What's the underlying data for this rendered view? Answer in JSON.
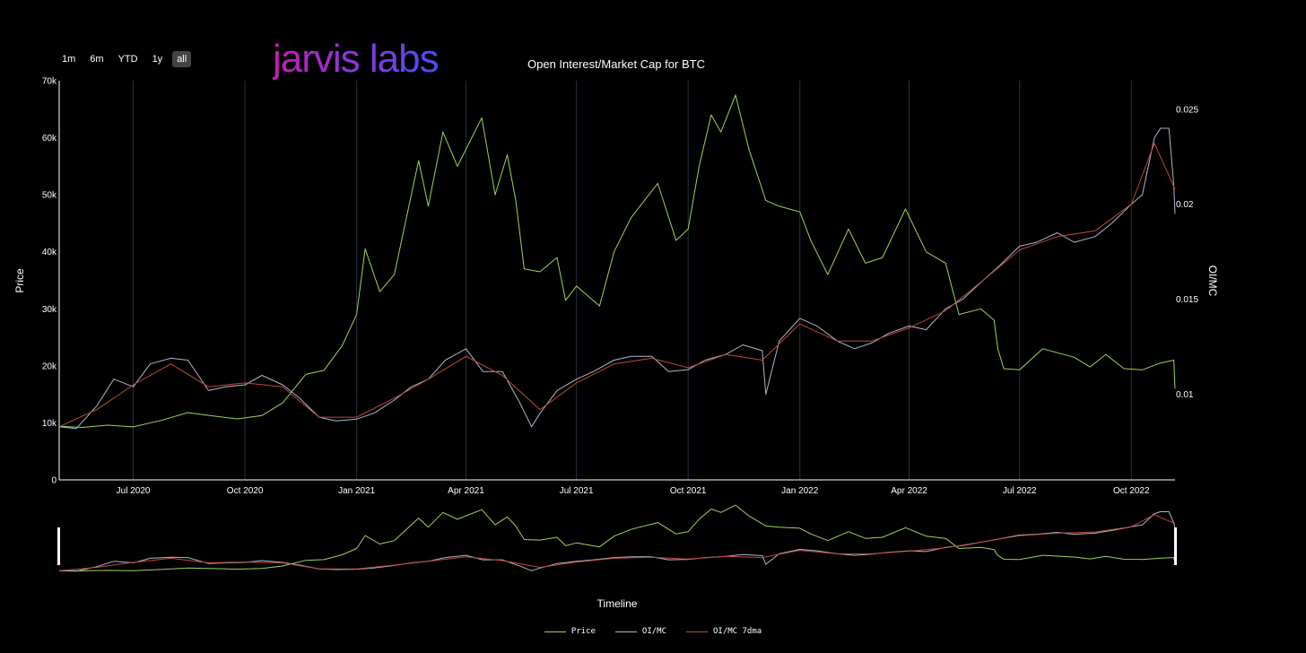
{
  "range_selector": {
    "buttons": [
      {
        "label": "1m",
        "active": false
      },
      {
        "label": "6m",
        "active": false
      },
      {
        "label": "YTD",
        "active": false
      },
      {
        "label": "1y",
        "active": false
      },
      {
        "label": "all",
        "active": true
      }
    ]
  },
  "brand": {
    "text": "jarvis labs"
  },
  "colors": {
    "background": "#000000",
    "price": "#9fd357",
    "oimc": "#a9b8cc",
    "oimc_7dma": "#c0483c",
    "grid": "#2a3040",
    "axis": "#ffffff"
  },
  "chart_data": {
    "type": "line",
    "title": "Open Interest/Market Cap for BTC",
    "xlabel": "Timeline",
    "ylabel": "Price",
    "y2label": "OI/MC",
    "x_range": [
      "2020-05-01",
      "2022-11-06"
    ],
    "ylim": [
      0,
      70000
    ],
    "y2lim": [
      0.0055,
      0.0265
    ],
    "x_ticks": [
      {
        "date": "2020-07-01",
        "label": "Jul 2020"
      },
      {
        "date": "2020-10-01",
        "label": "Oct 2020"
      },
      {
        "date": "2021-01-01",
        "label": "Jan 2021"
      },
      {
        "date": "2021-04-01",
        "label": "Apr 2021"
      },
      {
        "date": "2021-07-01",
        "label": "Jul 2021"
      },
      {
        "date": "2021-10-01",
        "label": "Oct 2021"
      },
      {
        "date": "2022-01-01",
        "label": "Jan 2022"
      },
      {
        "date": "2022-04-01",
        "label": "Apr 2022"
      },
      {
        "date": "2022-07-01",
        "label": "Jul 2022"
      },
      {
        "date": "2022-10-01",
        "label": "Oct 2022"
      }
    ],
    "y_ticks": [
      {
        "value": 0,
        "label": "0"
      },
      {
        "value": 10000,
        "label": "10k"
      },
      {
        "value": 20000,
        "label": "20k"
      },
      {
        "value": 30000,
        "label": "30k"
      },
      {
        "value": 40000,
        "label": "40k"
      },
      {
        "value": 50000,
        "label": "50k"
      },
      {
        "value": 60000,
        "label": "60k"
      },
      {
        "value": 70000,
        "label": "70k"
      }
    ],
    "y2_ticks": [
      {
        "value": 0.01,
        "label": "0.01"
      },
      {
        "value": 0.015,
        "label": "0.015"
      },
      {
        "value": 0.02,
        "label": "0.02"
      },
      {
        "value": 0.025,
        "label": "0.025"
      }
    ],
    "grid": "vertical",
    "legend_position": "bottom-center",
    "series": [
      {
        "name": "Price",
        "axis": "left",
        "x": [
          "2020-05-01",
          "2020-05-20",
          "2020-06-10",
          "2020-07-01",
          "2020-07-25",
          "2020-08-15",
          "2020-09-05",
          "2020-09-25",
          "2020-10-15",
          "2020-11-01",
          "2020-11-20",
          "2020-12-05",
          "2020-12-20",
          "2021-01-01",
          "2021-01-08",
          "2021-01-20",
          "2021-02-01",
          "2021-02-10",
          "2021-02-21",
          "2021-03-01",
          "2021-03-13",
          "2021-03-25",
          "2021-04-14",
          "2021-04-25",
          "2021-05-05",
          "2021-05-12",
          "2021-05-19",
          "2021-06-01",
          "2021-06-15",
          "2021-06-22",
          "2021-07-01",
          "2021-07-20",
          "2021-08-01",
          "2021-08-15",
          "2021-09-06",
          "2021-09-21",
          "2021-10-01",
          "2021-10-10",
          "2021-10-20",
          "2021-10-28",
          "2021-11-09",
          "2021-11-20",
          "2021-12-04",
          "2021-12-15",
          "2022-01-01",
          "2022-01-10",
          "2022-01-24",
          "2022-02-10",
          "2022-02-24",
          "2022-03-10",
          "2022-03-29",
          "2022-04-15",
          "2022-05-01",
          "2022-05-12",
          "2022-05-30",
          "2022-06-10",
          "2022-06-13",
          "2022-06-18",
          "2022-07-01",
          "2022-07-20",
          "2022-08-15",
          "2022-08-28",
          "2022-09-10",
          "2022-09-25",
          "2022-10-10",
          "2022-10-25",
          "2022-11-05",
          "2022-11-06"
        ],
        "values": [
          9400,
          9200,
          9600,
          9300,
          10500,
          11800,
          11200,
          10700,
          11300,
          13500,
          18500,
          19200,
          23500,
          29000,
          40500,
          33000,
          36000,
          45000,
          56000,
          48000,
          61000,
          55000,
          63500,
          50000,
          57000,
          49000,
          37000,
          36500,
          39000,
          31500,
          34000,
          30500,
          40000,
          46000,
          52000,
          42000,
          44000,
          55000,
          64000,
          61000,
          67500,
          58000,
          49000,
          48000,
          47000,
          42000,
          36000,
          44000,
          38000,
          39000,
          47500,
          40000,
          38000,
          29000,
          30000,
          28000,
          23000,
          19500,
          19300,
          23000,
          21500,
          19800,
          22000,
          19500,
          19300,
          20500,
          21000,
          16000
        ]
      },
      {
        "name": "OI/MC",
        "axis": "right",
        "x": [
          "2020-05-01",
          "2020-05-15",
          "2020-06-01",
          "2020-06-15",
          "2020-07-01",
          "2020-07-15",
          "2020-08-01",
          "2020-08-15",
          "2020-09-01",
          "2020-09-15",
          "2020-10-01",
          "2020-10-15",
          "2020-11-01",
          "2020-11-15",
          "2020-12-01",
          "2020-12-15",
          "2021-01-01",
          "2021-01-15",
          "2021-02-01",
          "2021-02-15",
          "2021-03-01",
          "2021-03-15",
          "2021-04-01",
          "2021-04-15",
          "2021-05-01",
          "2021-05-15",
          "2021-05-25",
          "2021-06-01",
          "2021-06-15",
          "2021-07-01",
          "2021-07-15",
          "2021-08-01",
          "2021-08-15",
          "2021-09-01",
          "2021-09-15",
          "2021-10-01",
          "2021-10-15",
          "2021-11-01",
          "2021-11-15",
          "2021-12-01",
          "2021-12-04",
          "2021-12-15",
          "2022-01-01",
          "2022-01-15",
          "2022-02-01",
          "2022-02-15",
          "2022-03-01",
          "2022-03-15",
          "2022-04-01",
          "2022-04-15",
          "2022-05-01",
          "2022-05-15",
          "2022-06-01",
          "2022-06-15",
          "2022-07-01",
          "2022-07-15",
          "2022-08-01",
          "2022-08-15",
          "2022-09-01",
          "2022-09-15",
          "2022-10-01",
          "2022-10-10",
          "2022-10-20",
          "2022-10-25",
          "2022-11-01",
          "2022-11-05",
          "2022-11-06"
        ],
        "values": [
          0.0083,
          0.0082,
          0.0094,
          0.0108,
          0.0104,
          0.0116,
          0.0119,
          0.0118,
          0.0102,
          0.0104,
          0.0105,
          0.011,
          0.0105,
          0.0098,
          0.0088,
          0.0086,
          0.0087,
          0.009,
          0.0097,
          0.0104,
          0.0108,
          0.0118,
          0.0124,
          0.0112,
          0.0112,
          0.0096,
          0.0083,
          0.009,
          0.0102,
          0.0108,
          0.0112,
          0.0118,
          0.012,
          0.012,
          0.0112,
          0.0113,
          0.0118,
          0.0121,
          0.0126,
          0.0123,
          0.01,
          0.0128,
          0.014,
          0.0136,
          0.0128,
          0.0124,
          0.0127,
          0.0132,
          0.0136,
          0.0134,
          0.0145,
          0.015,
          0.016,
          0.0168,
          0.0178,
          0.018,
          0.0185,
          0.018,
          0.0183,
          0.019,
          0.02,
          0.0205,
          0.0235,
          0.024,
          0.024,
          0.021,
          0.0195
        ]
      },
      {
        "name": "OI/MC 7dma",
        "axis": "right",
        "x": [
          "2020-05-01",
          "2020-06-01",
          "2020-07-01",
          "2020-08-01",
          "2020-09-01",
          "2020-10-01",
          "2020-11-01",
          "2020-12-01",
          "2021-01-01",
          "2021-02-01",
          "2021-03-01",
          "2021-04-01",
          "2021-05-01",
          "2021-06-01",
          "2021-07-01",
          "2021-08-01",
          "2021-09-01",
          "2021-10-01",
          "2021-11-01",
          "2021-12-01",
          "2022-01-01",
          "2022-02-01",
          "2022-03-01",
          "2022-04-01",
          "2022-05-01",
          "2022-06-01",
          "2022-07-01",
          "2022-08-01",
          "2022-09-01",
          "2022-10-01",
          "2022-10-20",
          "2022-11-06"
        ],
        "values": [
          0.0083,
          0.0092,
          0.0105,
          0.0116,
          0.0104,
          0.0106,
          0.0104,
          0.0088,
          0.0088,
          0.0098,
          0.0108,
          0.012,
          0.011,
          0.0092,
          0.0106,
          0.0116,
          0.0119,
          0.0114,
          0.0121,
          0.0118,
          0.0137,
          0.0128,
          0.0128,
          0.0135,
          0.0144,
          0.016,
          0.0176,
          0.0183,
          0.0186,
          0.02,
          0.0232,
          0.0208
        ]
      }
    ]
  }
}
